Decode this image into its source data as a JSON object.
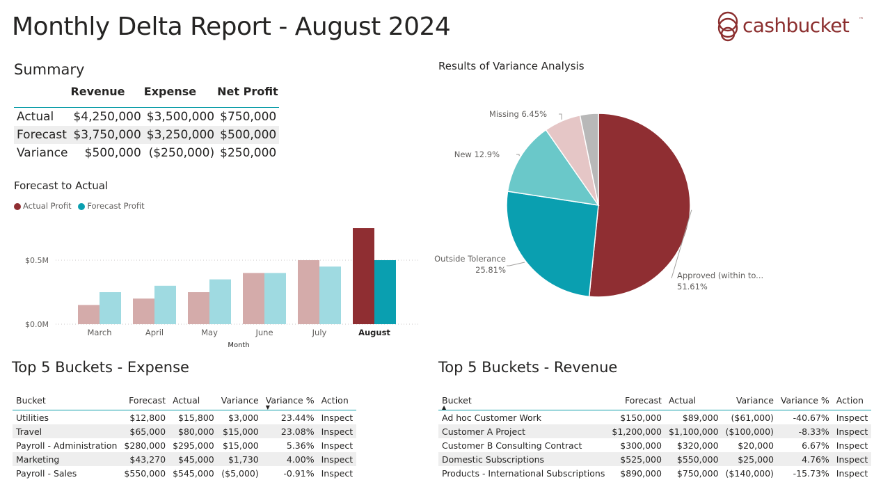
{
  "page": {
    "title": "Monthly Delta Report - August 2024",
    "logo_text": "cashbucket",
    "logo_tm": "™"
  },
  "summary": {
    "title": "Summary",
    "columns": [
      "Revenue",
      "Expense",
      "Net Profit"
    ],
    "rows": [
      {
        "label": "Actual",
        "values": [
          "$4,250,000",
          "$3,500,000",
          "$750,000"
        ]
      },
      {
        "label": "Forecast",
        "values": [
          "$3,750,000",
          "$3,250,000",
          "$500,000"
        ]
      },
      {
        "label": "Variance",
        "values": [
          "$500,000",
          "($250,000)",
          "$250,000"
        ]
      }
    ]
  },
  "colors": {
    "actual": "#8f2e32",
    "forecast": "#0a9fb0",
    "actual_faded": "#d4abaa",
    "forecast_faded": "#9fdae1",
    "new": "#6ac8c9",
    "missing": "#e5c6c6",
    "other": "#b8b8b8",
    "accent_line": "#0b9da8"
  },
  "chart_data": [
    {
      "type": "bar",
      "title": "Forecast to Actual",
      "categories": [
        "March",
        "April",
        "May",
        "June",
        "July",
        "August"
      ],
      "series": [
        {
          "name": "Actual Profit",
          "values": [
            150000,
            200000,
            250000,
            400000,
            500000,
            750000
          ]
        },
        {
          "name": "Forecast Profit",
          "values": [
            250000,
            300000,
            350000,
            400000,
            450000,
            500000
          ]
        }
      ],
      "highlighted_category": "August",
      "xlabel": "Month",
      "ylabel": "",
      "yticks": [
        "$0.0M",
        "$0.5M"
      ],
      "ylim": [
        0,
        800000
      ],
      "legend": "top-left",
      "grid": true
    },
    {
      "type": "pie",
      "title": "Results of Variance Analysis",
      "slices": [
        {
          "label": "Approved (within to...",
          "value": 51.61,
          "display": "51.61%"
        },
        {
          "label": "Outside Tolerance",
          "value": 25.81,
          "display": "25.81%"
        },
        {
          "label": "New",
          "value": 12.9,
          "display": "12.9%"
        },
        {
          "label": "Missing",
          "value": 6.45,
          "display": "6.45%"
        },
        {
          "label": "",
          "value": 3.23,
          "display": ""
        }
      ]
    }
  ],
  "expense_table": {
    "title": "Top 5 Buckets - Expense",
    "columns": [
      "Bucket",
      "Forecast",
      "Actual",
      "Variance",
      "Variance %",
      "Action"
    ],
    "rows": [
      [
        "Utilities",
        "$12,800",
        "$15,800",
        "$3,000",
        "23.44%",
        "Inspect"
      ],
      [
        "Travel",
        "$65,000",
        "$80,000",
        "$15,000",
        "23.08%",
        "Inspect"
      ],
      [
        "Payroll - Administration",
        "$280,000",
        "$295,000",
        "$15,000",
        "5.36%",
        "Inspect"
      ],
      [
        "Marketing",
        "$43,270",
        "$45,000",
        "$1,730",
        "4.00%",
        "Inspect"
      ],
      [
        "Payroll - Sales",
        "$550,000",
        "$545,000",
        "($5,000)",
        "-0.91%",
        "Inspect"
      ]
    ]
  },
  "revenue_table": {
    "title": "Top 5 Buckets - Revenue",
    "columns": [
      "Bucket",
      "Forecast",
      "Actual",
      "Variance",
      "Variance %",
      "Action"
    ],
    "rows": [
      [
        "Ad hoc Customer Work",
        "$150,000",
        "$89,000",
        "($61,000)",
        "-40.67%",
        "Inspect"
      ],
      [
        "Customer A Project",
        "$1,200,000",
        "$1,100,000",
        "($100,000)",
        "-8.33%",
        "Inspect"
      ],
      [
        "Customer B Consulting Contract",
        "$300,000",
        "$320,000",
        "$20,000",
        "6.67%",
        "Inspect"
      ],
      [
        "Domestic Subscriptions",
        "$525,000",
        "$550,000",
        "$25,000",
        "4.76%",
        "Inspect"
      ],
      [
        "Products - International Subscriptions",
        "$890,000",
        "$750,000",
        "($140,000)",
        "-15.73%",
        "Inspect"
      ]
    ]
  }
}
